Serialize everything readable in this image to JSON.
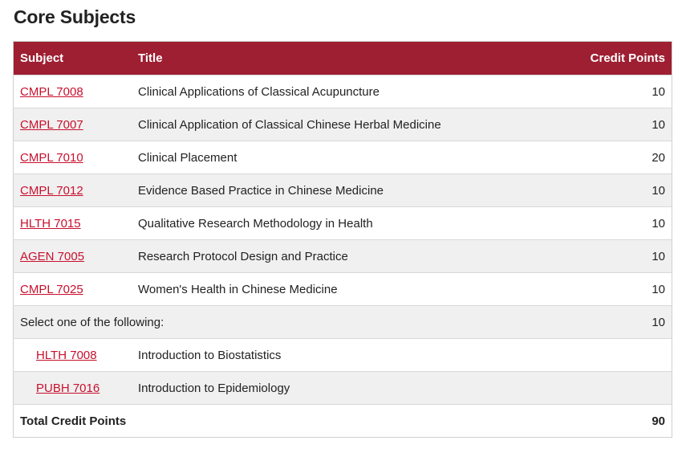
{
  "page_title": "Core Subjects",
  "table": {
    "headers": {
      "subject": "Subject",
      "title": "Title",
      "credit_points": "Credit Points"
    },
    "rows": [
      {
        "code": "CMPL 7008",
        "title": "Clinical Applications of Classical Acupuncture",
        "credits": "10"
      },
      {
        "code": "CMPL 7007",
        "title": "Clinical Application of Classical Chinese Herbal Medicine",
        "credits": "10"
      },
      {
        "code": "CMPL 7010",
        "title": "Clinical Placement",
        "credits": "20"
      },
      {
        "code": "CMPL 7012",
        "title": "Evidence Based Practice in Chinese Medicine",
        "credits": "10"
      },
      {
        "code": "HLTH 7015",
        "title": "Qualitative Research Methodology in Health",
        "credits": "10"
      },
      {
        "code": "AGEN 7005",
        "title": "Research Protocol Design and Practice",
        "credits": "10"
      },
      {
        "code": "CMPL 7025",
        "title": "Women's Health in Chinese Medicine",
        "credits": "10"
      }
    ],
    "select_one": {
      "label": "Select one of the following:",
      "credits": "10",
      "options": [
        {
          "code": "HLTH 7008",
          "title": "Introduction to Biostatistics"
        },
        {
          "code": "PUBH 7016",
          "title": "Introduction to Epidemiology"
        }
      ]
    },
    "total": {
      "label": "Total Credit Points",
      "credits": "90"
    }
  },
  "colors": {
    "header_bg": "#9e1f32",
    "link": "#c8102e",
    "stripe": "#f0f0f0"
  }
}
